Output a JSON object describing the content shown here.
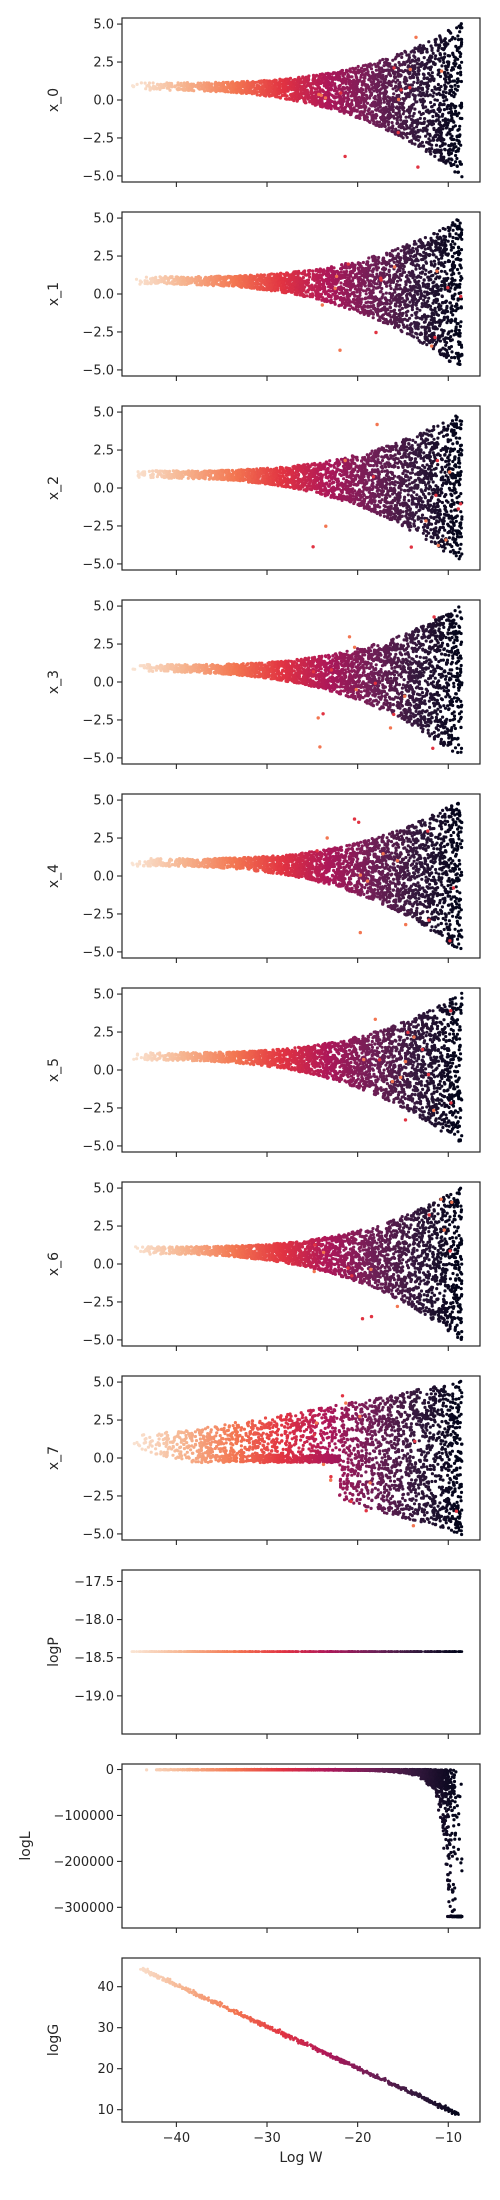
{
  "chart_data": [
    {
      "type": "scatter",
      "ylabel": "x_0",
      "ylim": [
        -5.4,
        5.4
      ],
      "yticks": [
        5.0,
        2.5,
        0.0,
        -2.5,
        -5.0
      ],
      "ytick_labels": [
        "5.0",
        "2.5",
        "0.0",
        "−2.5",
        "−5.0"
      ],
      "shape": "fan",
      "grid": false
    },
    {
      "type": "scatter",
      "ylabel": "x_1",
      "ylim": [
        -5.4,
        5.4
      ],
      "yticks": [
        5.0,
        2.5,
        0.0,
        -2.5,
        -5.0
      ],
      "ytick_labels": [
        "5.0",
        "2.5",
        "0.0",
        "−2.5",
        "−5.0"
      ],
      "shape": "fan",
      "grid": false
    },
    {
      "type": "scatter",
      "ylabel": "x_2",
      "ylim": [
        -5.4,
        5.4
      ],
      "yticks": [
        5.0,
        2.5,
        0.0,
        -2.5,
        -5.0
      ],
      "ytick_labels": [
        "5.0",
        "2.5",
        "0.0",
        "−2.5",
        "−5.0"
      ],
      "shape": "fan",
      "grid": false
    },
    {
      "type": "scatter",
      "ylabel": "x_3",
      "ylim": [
        -5.4,
        5.4
      ],
      "yticks": [
        5.0,
        2.5,
        0.0,
        -2.5,
        -5.0
      ],
      "ytick_labels": [
        "5.0",
        "2.5",
        "0.0",
        "−2.5",
        "−5.0"
      ],
      "shape": "fan",
      "grid": false
    },
    {
      "type": "scatter",
      "ylabel": "x_4",
      "ylim": [
        -5.4,
        5.4
      ],
      "yticks": [
        5.0,
        2.5,
        0.0,
        -2.5,
        -5.0
      ],
      "ytick_labels": [
        "5.0",
        "2.5",
        "0.0",
        "−2.5",
        "−5.0"
      ],
      "shape": "fan",
      "grid": false
    },
    {
      "type": "scatter",
      "ylabel": "x_5",
      "ylim": [
        -5.4,
        5.4
      ],
      "yticks": [
        5.0,
        2.5,
        0.0,
        -2.5,
        -5.0
      ],
      "ytick_labels": [
        "5.0",
        "2.5",
        "0.0",
        "−2.5",
        "−5.0"
      ],
      "shape": "fan",
      "grid": false
    },
    {
      "type": "scatter",
      "ylabel": "x_6",
      "ylim": [
        -5.4,
        5.4
      ],
      "yticks": [
        5.0,
        2.5,
        0.0,
        -2.5,
        -5.0
      ],
      "ytick_labels": [
        "5.0",
        "2.5",
        "0.0",
        "−2.5",
        "−5.0"
      ],
      "shape": "fan",
      "grid": false
    },
    {
      "type": "scatter",
      "ylabel": "x_7",
      "ylim": [
        -5.4,
        5.4
      ],
      "yticks": [
        5.0,
        2.5,
        0.0,
        -2.5,
        -5.0
      ],
      "ytick_labels": [
        "5.0",
        "2.5",
        "0.0",
        "−2.5",
        "−5.0"
      ],
      "shape": "wide",
      "grid": false
    },
    {
      "type": "scatter",
      "ylabel": "logP",
      "ylim": [
        -19.5,
        -17.35
      ],
      "yticks": [
        -17.5,
        -18.0,
        -18.5,
        -19.0
      ],
      "ytick_labels": [
        "−17.5",
        "−18.0",
        "−18.5",
        "−19.0"
      ],
      "shape": "constant",
      "constant_value": -18.42,
      "grid": false
    },
    {
      "type": "scatter",
      "ylabel": "logL",
      "ylim": [
        -345000,
        12000
      ],
      "yticks": [
        0,
        -100000,
        -200000,
        -300000
      ],
      "ytick_labels": [
        "0",
        "−100000",
        "−200000",
        "−300000"
      ],
      "shape": "logL",
      "grid": false
    },
    {
      "type": "scatter",
      "ylabel": "logG",
      "ylim": [
        7,
        47
      ],
      "yticks": [
        40,
        30,
        20,
        10
      ],
      "ytick_labels": [
        "40",
        "30",
        "20",
        "10"
      ],
      "shape": "linear",
      "line": {
        "x": [
          -44,
          -9
        ],
        "y": [
          44.5,
          9
        ]
      },
      "grid": false
    }
  ],
  "x_axis": {
    "xlabel": "Log W",
    "xlim": [
      -46,
      -6.5
    ],
    "xticks": [
      -40,
      -30,
      -20,
      -10
    ],
    "xtick_labels": [
      "−40",
      "−30",
      "−20",
      "−10"
    ]
  },
  "colormap": {
    "name": "rocket",
    "stops": [
      "#faebdd",
      "#f6b48f",
      "#f37651",
      "#e13342",
      "#ad1759",
      "#701f57",
      "#35193e",
      "#03051a"
    ]
  }
}
